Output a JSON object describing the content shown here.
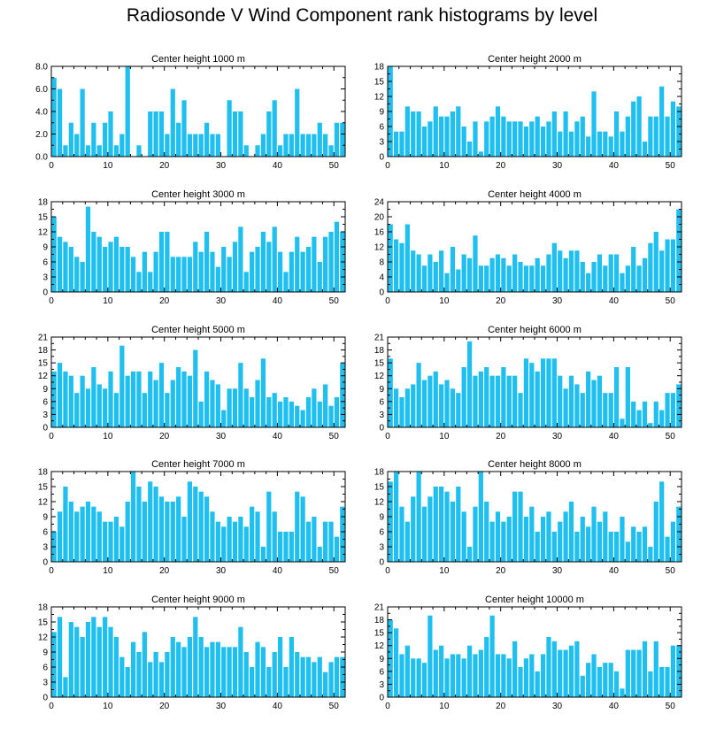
{
  "title": "Radiosonde V Wind Component rank histograms by level",
  "colors": {
    "bar": "#1fc0f0",
    "frame": "#000000"
  },
  "chart_data": [
    {
      "type": "bar",
      "title": "Center height 1000 m",
      "xlabel": "",
      "ylabel": "",
      "xlim": [
        0,
        52
      ],
      "ylim": [
        0,
        8
      ],
      "xticks": [
        0,
        10,
        20,
        30,
        40,
        50
      ],
      "yticks": [
        0,
        2,
        4,
        6,
        8
      ],
      "ytick_labels": [
        "0.0",
        "2.0",
        "4.0",
        "6.0",
        "8.0"
      ],
      "values": [
        7,
        6,
        1,
        3,
        2,
        6,
        1,
        3,
        1,
        3,
        4,
        1,
        2,
        8,
        0,
        1,
        0,
        4,
        4,
        4,
        2,
        6,
        3,
        5,
        2,
        2,
        2,
        3,
        2,
        2,
        0,
        5,
        4,
        4,
        1,
        0,
        1,
        2,
        4,
        5,
        1,
        2,
        2,
        6,
        2,
        2,
        2,
        3,
        2,
        1,
        3,
        3
      ]
    },
    {
      "type": "bar",
      "title": "Center height 2000 m",
      "xlabel": "",
      "ylabel": "",
      "xlim": [
        0,
        52
      ],
      "ylim": [
        0,
        18
      ],
      "xticks": [
        0,
        10,
        20,
        30,
        40,
        50
      ],
      "yticks": [
        0,
        3,
        6,
        9,
        12,
        15,
        18
      ],
      "ytick_labels": [
        "0",
        "3",
        "6",
        "9",
        "12",
        "15",
        "18"
      ],
      "values": [
        18,
        5,
        5,
        10,
        9,
        9,
        6,
        7,
        10,
        8,
        8,
        9,
        10,
        6,
        3,
        7,
        1,
        7,
        8,
        10,
        8,
        7,
        7,
        7,
        6,
        7,
        8,
        6,
        7,
        9,
        5,
        9,
        5,
        7,
        8,
        4,
        13,
        5,
        5,
        4,
        9,
        5,
        8,
        11,
        12,
        3,
        8,
        8,
        14,
        8,
        11,
        10
      ]
    },
    {
      "type": "bar",
      "title": "Center height 3000 m",
      "xlabel": "",
      "ylabel": "",
      "xlim": [
        0,
        52
      ],
      "ylim": [
        0,
        18
      ],
      "xticks": [
        0,
        10,
        20,
        30,
        40,
        50
      ],
      "yticks": [
        0,
        3,
        6,
        9,
        12,
        15,
        18
      ],
      "ytick_labels": [
        "0",
        "3",
        "6",
        "9",
        "12",
        "15",
        "18"
      ],
      "values": [
        15,
        11,
        10,
        9,
        7,
        6,
        17,
        12,
        11,
        9,
        10,
        11,
        9,
        9,
        7,
        4,
        8,
        4,
        8,
        12,
        12,
        7,
        7,
        7,
        7,
        10,
        8,
        12,
        8,
        5,
        9,
        7,
        10,
        13,
        4,
        8,
        9,
        12,
        10,
        13,
        8,
        4,
        8,
        11,
        8,
        9,
        11,
        6,
        11,
        12,
        14,
        12
      ]
    },
    {
      "type": "bar",
      "title": "Center height 4000 m",
      "xlabel": "",
      "ylabel": "",
      "xlim": [
        0,
        52
      ],
      "ylim": [
        0,
        24
      ],
      "xticks": [
        0,
        10,
        20,
        30,
        40,
        50
      ],
      "yticks": [
        0,
        4,
        8,
        12,
        16,
        20,
        24
      ],
      "ytick_labels": [
        "0",
        "4",
        "8",
        "12",
        "16",
        "20",
        "24"
      ],
      "values": [
        18,
        14,
        13,
        18,
        11,
        10,
        7,
        10,
        8,
        11,
        5,
        12,
        6,
        10,
        9,
        15,
        7,
        7,
        9,
        10,
        9,
        7,
        10,
        8,
        7,
        7,
        9,
        7,
        10,
        13,
        11,
        9,
        11,
        11,
        8,
        5,
        8,
        10,
        7,
        10,
        10,
        5,
        7,
        12,
        7,
        9,
        13,
        16,
        11,
        14,
        14,
        22
      ]
    },
    {
      "type": "bar",
      "title": "Center height 5000 m",
      "xlabel": "",
      "ylabel": "",
      "xlim": [
        0,
        52
      ],
      "ylim": [
        0,
        21
      ],
      "xticks": [
        0,
        10,
        20,
        30,
        40,
        50
      ],
      "yticks": [
        0,
        3,
        6,
        9,
        12,
        15,
        18,
        21
      ],
      "ytick_labels": [
        "0",
        "3",
        "6",
        "9",
        "12",
        "15",
        "18",
        "21"
      ],
      "values": [
        13,
        15,
        13,
        12,
        8,
        12,
        9,
        14,
        10,
        9,
        13,
        8,
        19,
        12,
        13,
        13,
        8,
        13,
        11,
        15,
        8,
        11,
        14,
        13,
        12,
        18,
        6,
        13,
        11,
        10,
        4,
        9,
        9,
        15,
        9,
        7,
        11,
        16,
        7,
        8,
        6,
        7,
        6,
        5,
        4,
        7,
        9,
        6,
        10,
        5,
        7,
        15
      ]
    },
    {
      "type": "bar",
      "title": "Center height 6000 m",
      "xlabel": "",
      "ylabel": "",
      "xlim": [
        0,
        52
      ],
      "ylim": [
        0,
        21
      ],
      "xticks": [
        0,
        10,
        20,
        30,
        40,
        50
      ],
      "yticks": [
        0,
        3,
        6,
        9,
        12,
        15,
        18,
        21
      ],
      "ytick_labels": [
        "0",
        "3",
        "6",
        "9",
        "12",
        "15",
        "18",
        "21"
      ],
      "values": [
        16,
        9,
        7,
        9,
        10,
        15,
        11,
        12,
        13,
        10,
        11,
        9,
        8,
        14,
        20,
        12,
        13,
        14,
        12,
        12,
        14,
        12,
        12,
        8,
        16,
        15,
        13,
        16,
        16,
        16,
        12,
        9,
        12,
        10,
        8,
        13,
        11,
        12,
        8,
        8,
        14,
        2,
        14,
        6,
        4,
        6,
        1,
        6,
        4,
        8,
        8,
        10
      ]
    },
    {
      "type": "bar",
      "title": "Center height 7000 m",
      "xlabel": "",
      "ylabel": "",
      "xlim": [
        0,
        52
      ],
      "ylim": [
        0,
        18
      ],
      "xticks": [
        0,
        10,
        20,
        30,
        40,
        50
      ],
      "yticks": [
        0,
        3,
        6,
        9,
        12,
        15,
        18
      ],
      "ytick_labels": [
        "0",
        "3",
        "6",
        "9",
        "12",
        "15",
        "18"
      ],
      "values": [
        6,
        10,
        15,
        12,
        10,
        11,
        12,
        11,
        10,
        8,
        8,
        9,
        7,
        12,
        18,
        15,
        12,
        16,
        15,
        13,
        12,
        12,
        13,
        9,
        16,
        15,
        14,
        13,
        10,
        8,
        7,
        9,
        8,
        9,
        7,
        11,
        10,
        3,
        14,
        10,
        6,
        6,
        6,
        14,
        13,
        8,
        9,
        3,
        8,
        8,
        5,
        11
      ]
    },
    {
      "type": "bar",
      "title": "Center height 8000 m",
      "xlabel": "",
      "ylabel": "",
      "xlim": [
        0,
        52
      ],
      "ylim": [
        0,
        18
      ],
      "xticks": [
        0,
        10,
        20,
        30,
        40,
        50
      ],
      "yticks": [
        0,
        3,
        6,
        9,
        12,
        15,
        18
      ],
      "ytick_labels": [
        "0",
        "3",
        "6",
        "9",
        "12",
        "15",
        "18"
      ],
      "values": [
        16,
        18,
        11,
        8,
        13,
        18,
        11,
        13,
        15,
        15,
        14,
        12,
        15,
        10,
        3,
        11,
        18,
        12,
        8,
        10,
        8,
        9,
        14,
        14,
        9,
        11,
        6,
        9,
        10,
        6,
        8,
        10,
        12,
        6,
        9,
        7,
        11,
        8,
        10,
        6,
        6,
        9,
        4,
        7,
        6,
        7,
        3,
        12,
        16,
        5,
        8,
        11
      ]
    },
    {
      "type": "bar",
      "title": "Center height 9000 m",
      "xlabel": "",
      "ylabel": "",
      "xlim": [
        0,
        52
      ],
      "ylim": [
        0,
        18
      ],
      "xticks": [
        0,
        10,
        20,
        30,
        40,
        50
      ],
      "yticks": [
        0,
        3,
        6,
        9,
        12,
        15,
        18
      ],
      "ytick_labels": [
        "0",
        "3",
        "6",
        "9",
        "12",
        "15",
        "18"
      ],
      "values": [
        13,
        16,
        4,
        15,
        14,
        12,
        15,
        16,
        14,
        16,
        14,
        12,
        8,
        6,
        11,
        9,
        13,
        7,
        9,
        7,
        9,
        12,
        11,
        10,
        12,
        16,
        12,
        10,
        11,
        11,
        10,
        10,
        10,
        14,
        9,
        6,
        11,
        10,
        6,
        9,
        12,
        6,
        12,
        9,
        8,
        8,
        7,
        8,
        5,
        7,
        8,
        8
      ]
    },
    {
      "type": "bar",
      "title": "Center height 10000 m",
      "xlabel": "",
      "ylabel": "",
      "xlim": [
        0,
        52
      ],
      "ylim": [
        0,
        21
      ],
      "xticks": [
        0,
        10,
        20,
        30,
        40,
        50
      ],
      "yticks": [
        0,
        3,
        6,
        9,
        12,
        15,
        18,
        21
      ],
      "ytick_labels": [
        "0",
        "3",
        "6",
        "9",
        "12",
        "15",
        "18",
        "21"
      ],
      "values": [
        18,
        16,
        10,
        12,
        9,
        9,
        8,
        19,
        11,
        12,
        9,
        10,
        10,
        9,
        12,
        10,
        11,
        14,
        19,
        10,
        10,
        9,
        13,
        7,
        9,
        10,
        6,
        10,
        14,
        13,
        11,
        11,
        12,
        13,
        5,
        8,
        10,
        7,
        8,
        8,
        6,
        2,
        11,
        11,
        11,
        13,
        6,
        13,
        7,
        7,
        12,
        12
      ]
    }
  ]
}
